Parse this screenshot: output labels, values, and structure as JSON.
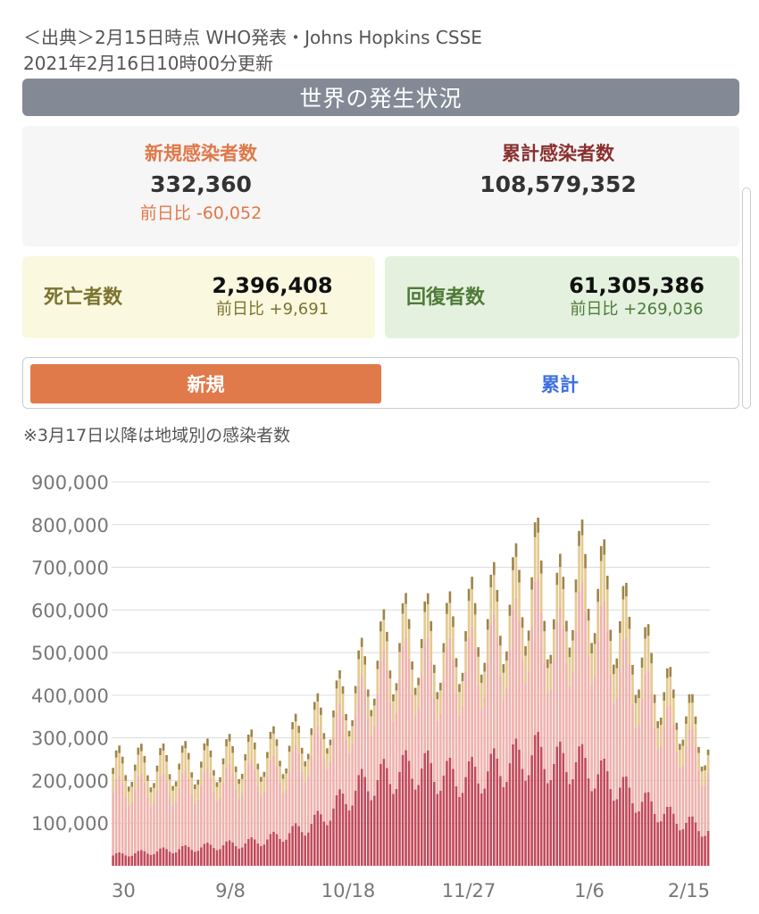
{
  "header": {
    "source": "＜出典＞2月15日時点 WHO発表・Johns Hopkins CSSE",
    "updated": "2021年2月16日10時00分更新",
    "section_title": "世界の発生状況"
  },
  "stats": {
    "new_cases": {
      "label": "新規感染者数",
      "value": "332,360",
      "diff": "前日比 -60,052"
    },
    "total_cases": {
      "label": "累計感染者数",
      "value": "108,579,352"
    },
    "deaths": {
      "label": "死亡者数",
      "value": "2,396,408",
      "diff": "前日比 +9,691"
    },
    "recovered": {
      "label": "回復者数",
      "value": "61,305,386",
      "diff": "前日比 +269,036"
    }
  },
  "toggle": {
    "new_label": "新規",
    "total_label": "累計",
    "selected": "新規"
  },
  "note": "※3月17日以降は地域別の感染者数",
  "colors": {
    "accent_orange": "#e07a4a",
    "header_gray": "#838a96",
    "total_red": "#8b2f2f",
    "toggle_blue": "#3f6fe0",
    "series_base": "#c24a5a",
    "series_mid": "#eeb2ad",
    "series_upper": "#e4c98f",
    "series_top": "#9e8448"
  },
  "chart_data": {
    "type": "bar",
    "stacked": true,
    "y_ticks": [
      "900,000",
      "800,000",
      "700,000",
      "600,000",
      "500,000",
      "400,000",
      "300,000",
      "200,000",
      "100,000"
    ],
    "ylim": [
      0,
      900000
    ],
    "x_tick_labels": [
      "30",
      "9/8",
      "10/18",
      "11/27",
      "1/6",
      "2/15"
    ],
    "grid": true,
    "series_colors": [
      "#c24a5a",
      "#eeb2ad",
      "#e4c98f",
      "#9e8448"
    ],
    "totals_weekly": [
      280000,
      290000,
      285000,
      290000,
      295000,
      300000,
      310000,
      320000,
      325000,
      335000,
      380000,
      420000,
      470000,
      540000,
      600000,
      640000,
      650000,
      630000,
      660000,
      690000,
      720000,
      760000,
      840000,
      700000,
      820000,
      810000,
      740000,
      640000,
      560000,
      470000,
      420000,
      332360
    ],
    "base_weekly": [
      30000,
      35000,
      40000,
      45000,
      50000,
      55000,
      60000,
      65000,
      75000,
      90000,
      110000,
      140000,
      190000,
      230000,
      250000,
      270000,
      280000,
      260000,
      250000,
      260000,
      280000,
      300000,
      320000,
      290000,
      300000,
      270000,
      240000,
      200000,
      170000,
      140000,
      120000,
      100000
    ]
  }
}
